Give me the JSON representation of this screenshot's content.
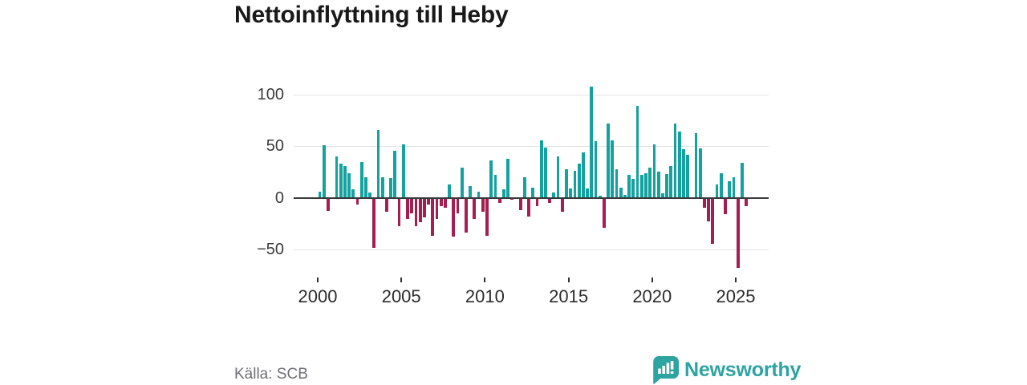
{
  "header": {
    "title": "Nettoinflyttning till Heby"
  },
  "source": {
    "label": "Källa: SCB"
  },
  "brand": {
    "name": "Newsworthy",
    "icon": "newsworthy-chart-bubble-icon",
    "color": "#2da49f"
  },
  "chart_data": {
    "type": "bar",
    "title": "Nettoinflyttning till Heby",
    "frequency": "quarterly",
    "x_start": "2000 Q1",
    "x_end": "2025 Q3",
    "values": [
      6,
      51,
      -13,
      0,
      40,
      33,
      31,
      24,
      8,
      -7,
      35,
      20,
      5,
      -49,
      66,
      20,
      -14,
      19,
      46,
      -28,
      52,
      -21,
      -15,
      -28,
      -24,
      -19,
      -7,
      -37,
      -21,
      -8,
      -10,
      13,
      -38,
      -15,
      29,
      -34,
      11,
      -21,
      6,
      -14,
      -37,
      36,
      22,
      -5,
      8,
      38,
      -2,
      0,
      -12,
      20,
      -18,
      10,
      -8,
      56,
      49,
      -5,
      5,
      40,
      -14,
      28,
      9,
      26,
      33,
      44,
      9,
      108,
      55,
      2,
      -29,
      72,
      56,
      28,
      10,
      3,
      22,
      18,
      89,
      22,
      24,
      29,
      52,
      25,
      4,
      23,
      31,
      72,
      64,
      47,
      42,
      0,
      63,
      48,
      -10,
      -23,
      -45,
      13,
      24,
      -16,
      16,
      20,
      -68,
      34,
      -8
    ],
    "positive_color": "#14a2a0",
    "negative_color": "#a51d51",
    "y_ticks": [
      {
        "value": 100,
        "label": "100"
      },
      {
        "value": 50,
        "label": "50"
      },
      {
        "value": 0,
        "label": "0"
      },
      {
        "value": -50,
        "label": "−50"
      }
    ],
    "x_ticks": [
      {
        "year": 2000,
        "label": "2000"
      },
      {
        "year": 2005,
        "label": "2005"
      },
      {
        "year": 2010,
        "label": "2010"
      },
      {
        "year": 2015,
        "label": "2015"
      },
      {
        "year": 2020,
        "label": "2020"
      },
      {
        "year": 2025,
        "label": "2025"
      }
    ],
    "ylim": [
      -75,
      115
    ],
    "grid": "horizontal",
    "legend": "none"
  }
}
